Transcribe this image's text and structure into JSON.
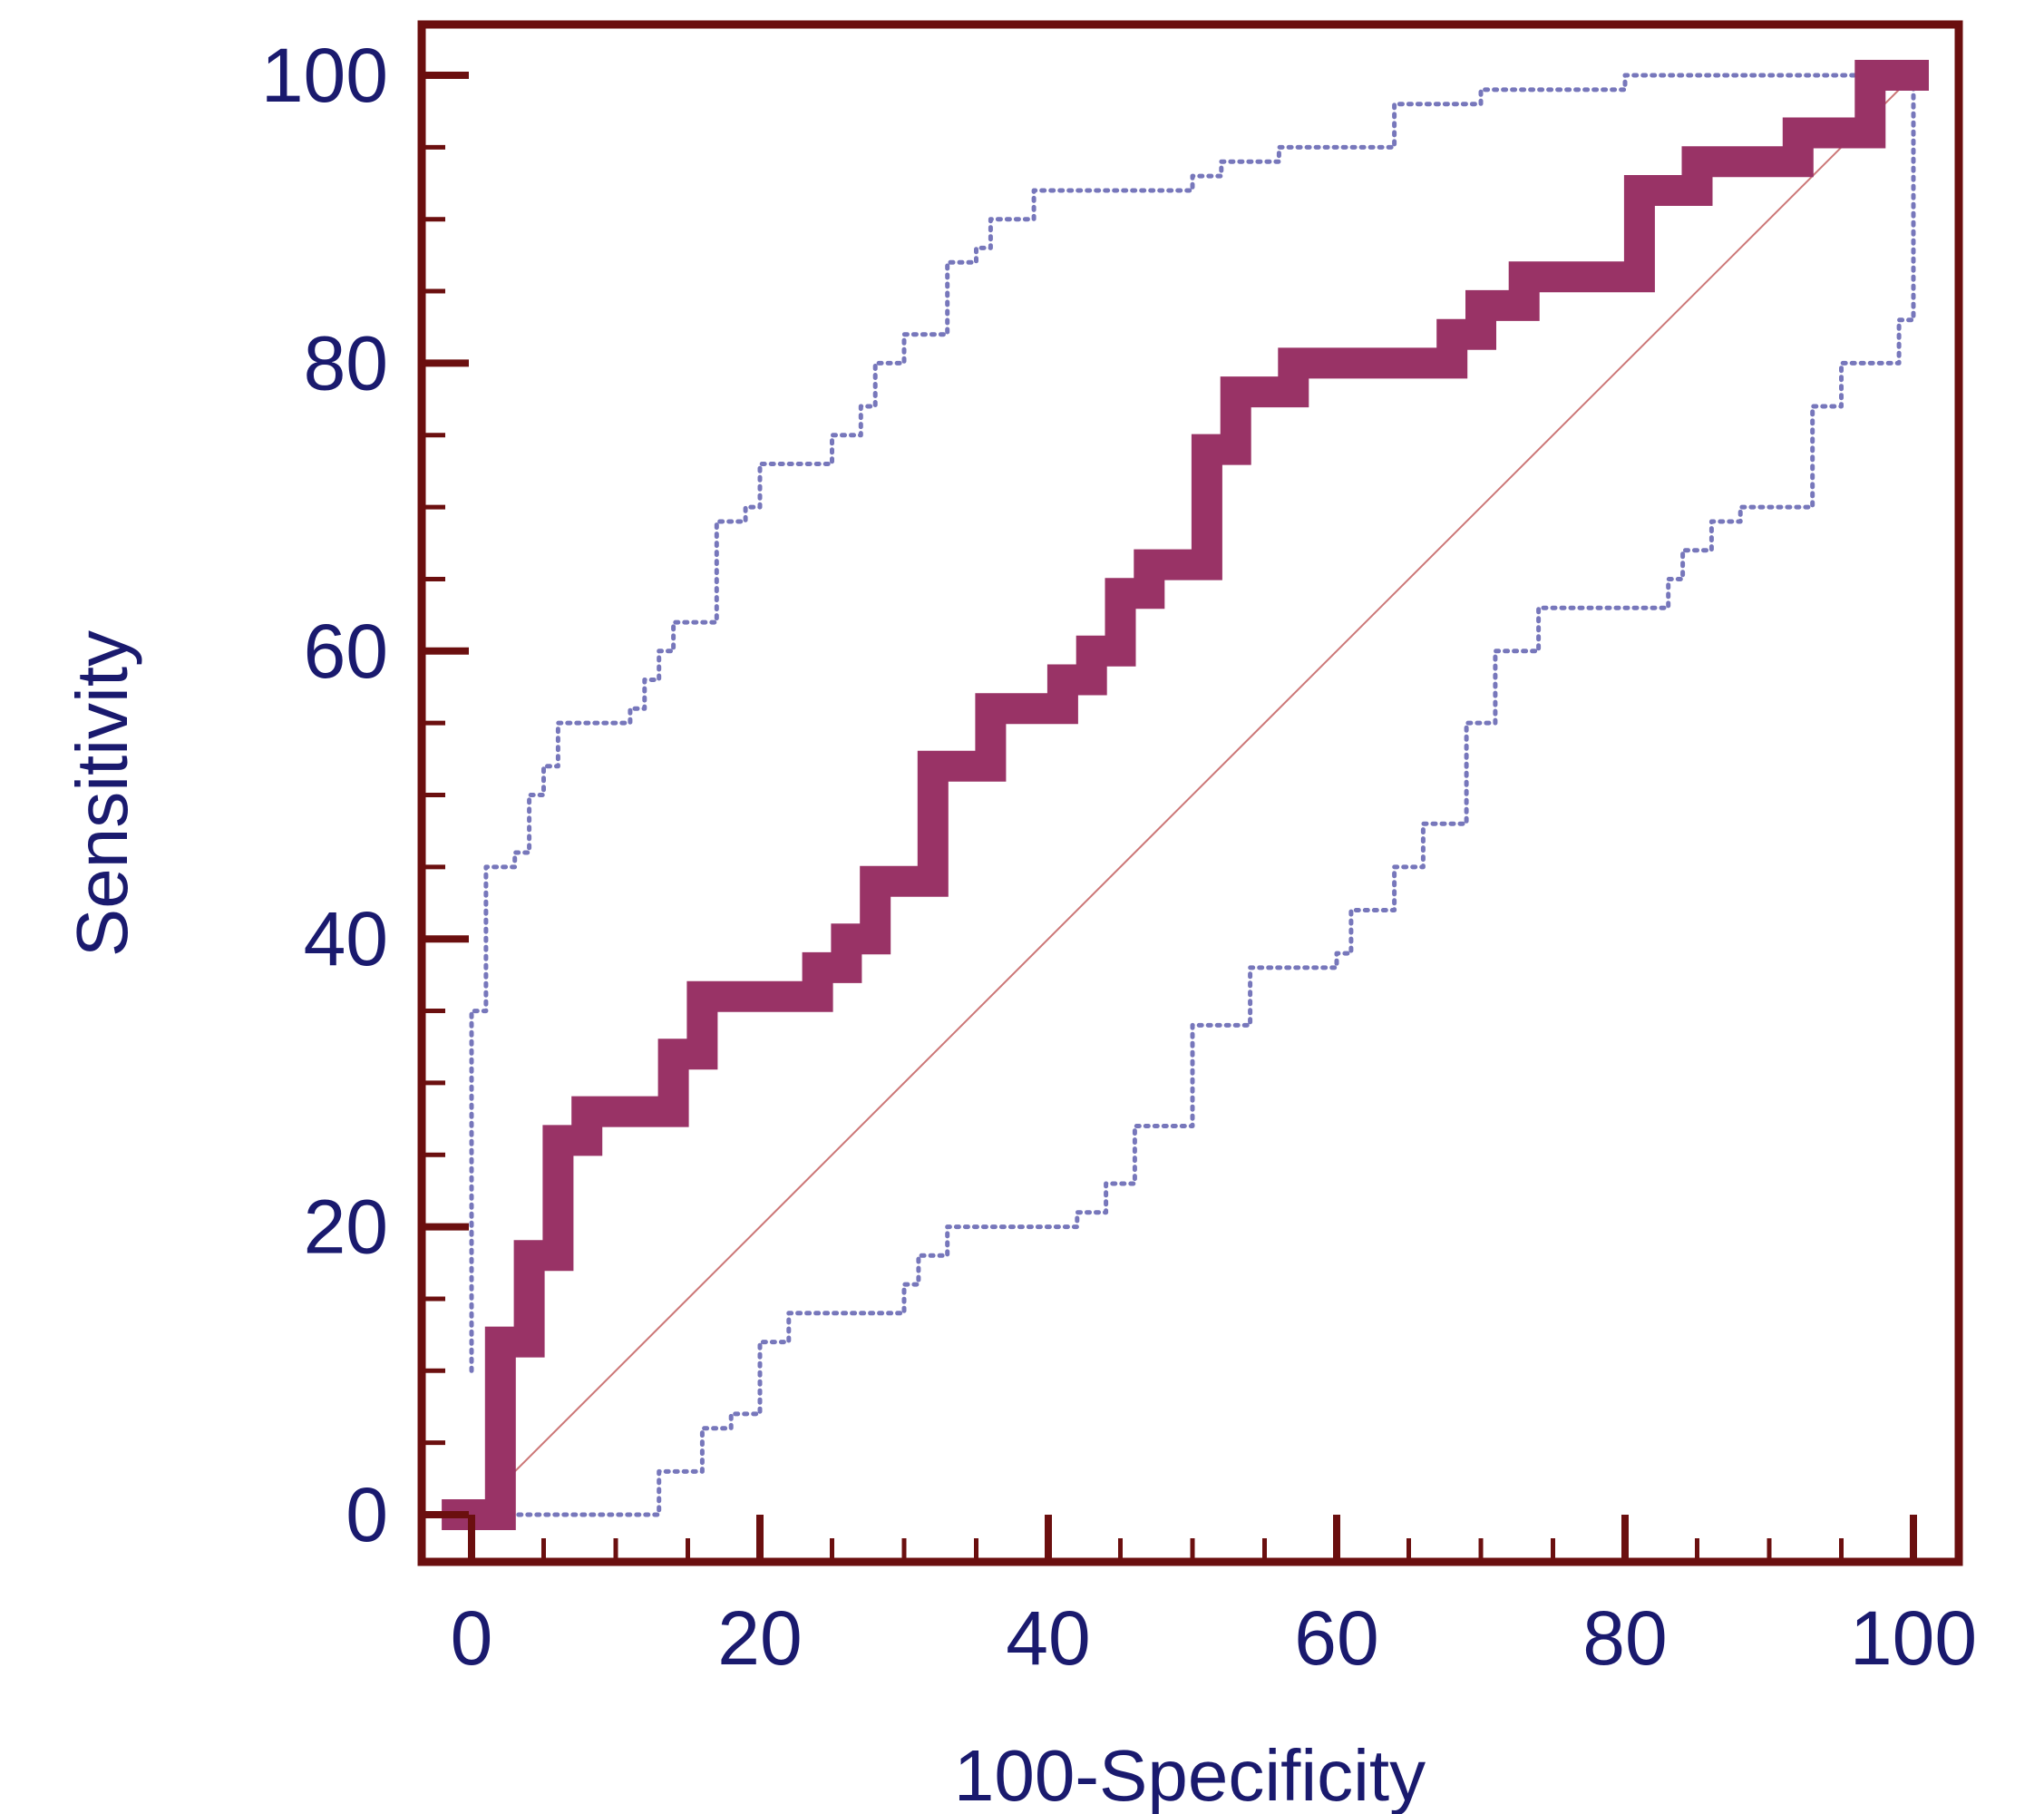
{
  "chart_data": {
    "type": "line",
    "title": "",
    "xlabel": "100-Specificity",
    "ylabel": "Sensitivity",
    "xlim": [
      0,
      100
    ],
    "ylim": [
      0,
      100
    ],
    "x_ticks": [
      "0",
      "20",
      "40",
      "60",
      "80",
      "100"
    ],
    "y_ticks": [
      "0",
      "20",
      "40",
      "60",
      "80",
      "100"
    ],
    "grid": false,
    "legend": "none",
    "colors": {
      "frame": "#6b0f0f",
      "roc_curve": "#993366",
      "confidence_bounds": "#7777bb",
      "reference_line": "#cc7777",
      "text": "#1a1a6e"
    },
    "series": [
      {
        "style": "thick-stepped",
        "points": [
          [
            -1,
            0
          ],
          [
            2,
            0
          ],
          [
            2,
            12
          ],
          [
            4,
            12
          ],
          [
            4,
            18
          ],
          [
            6,
            18
          ],
          [
            6,
            26
          ],
          [
            8,
            26
          ],
          [
            8,
            28
          ],
          [
            14,
            28
          ],
          [
            14,
            32
          ],
          [
            16,
            32
          ],
          [
            16,
            36
          ],
          [
            24,
            36
          ],
          [
            24,
            38
          ],
          [
            26,
            38
          ],
          [
            26,
            40
          ],
          [
            28,
            40
          ],
          [
            28,
            44
          ],
          [
            32,
            44
          ],
          [
            32,
            52
          ],
          [
            36,
            52
          ],
          [
            36,
            56
          ],
          [
            41,
            56
          ],
          [
            41,
            58
          ],
          [
            43,
            58
          ],
          [
            43,
            60
          ],
          [
            45,
            60
          ],
          [
            45,
            64
          ],
          [
            47,
            64
          ],
          [
            47,
            66
          ],
          [
            51,
            66
          ],
          [
            51,
            74
          ],
          [
            53,
            74
          ],
          [
            53,
            78
          ],
          [
            57,
            78
          ],
          [
            57,
            80
          ],
          [
            68,
            80
          ],
          [
            68,
            82
          ],
          [
            70,
            82
          ],
          [
            70,
            84
          ],
          [
            73,
            84
          ],
          [
            73,
            86
          ],
          [
            81,
            86
          ],
          [
            81,
            92
          ],
          [
            85,
            92
          ],
          [
            85,
            94
          ],
          [
            92,
            94
          ],
          [
            92,
            96
          ],
          [
            97,
            96
          ],
          [
            97,
            100
          ],
          [
            100,
            100
          ]
        ]
      },
      {
        "style": "dotted",
        "points": [
          [
            0,
            10
          ],
          [
            0,
            35
          ],
          [
            1,
            35
          ],
          [
            1,
            45
          ],
          [
            3,
            45
          ],
          [
            3,
            46
          ],
          [
            4,
            46
          ],
          [
            4,
            50
          ],
          [
            5,
            50
          ],
          [
            5,
            52
          ],
          [
            6,
            52
          ],
          [
            6,
            55
          ],
          [
            11,
            55
          ],
          [
            11,
            56
          ],
          [
            12,
            56
          ],
          [
            12,
            58
          ],
          [
            13,
            58
          ],
          [
            13,
            60
          ],
          [
            14,
            60
          ],
          [
            14,
            62
          ],
          [
            17,
            62
          ],
          [
            17,
            69
          ],
          [
            19,
            69
          ],
          [
            19,
            70
          ],
          [
            20,
            70
          ],
          [
            20,
            73
          ],
          [
            25,
            73
          ],
          [
            25,
            75
          ],
          [
            27,
            75
          ],
          [
            27,
            77
          ],
          [
            28,
            77
          ],
          [
            28,
            80
          ],
          [
            30,
            80
          ],
          [
            30,
            82
          ],
          [
            33,
            82
          ],
          [
            33,
            87
          ],
          [
            35,
            87
          ],
          [
            35,
            88
          ],
          [
            36,
            88
          ],
          [
            36,
            90
          ],
          [
            39,
            90
          ],
          [
            39,
            92
          ],
          [
            50,
            92
          ],
          [
            50,
            93
          ],
          [
            52,
            93
          ],
          [
            52,
            94
          ],
          [
            56,
            94
          ],
          [
            56,
            95
          ],
          [
            64,
            95
          ],
          [
            64,
            98
          ],
          [
            70,
            98
          ],
          [
            70,
            99
          ],
          [
            80,
            99
          ],
          [
            80,
            100
          ],
          [
            100,
            100
          ]
        ]
      },
      {
        "style": "dotted",
        "points": [
          [
            2,
            0
          ],
          [
            13,
            0
          ],
          [
            13,
            3
          ],
          [
            16,
            3
          ],
          [
            16,
            6
          ],
          [
            18,
            6
          ],
          [
            18,
            7
          ],
          [
            20,
            7
          ],
          [
            20,
            12
          ],
          [
            22,
            12
          ],
          [
            22,
            14
          ],
          [
            30,
            14
          ],
          [
            30,
            16
          ],
          [
            31,
            16
          ],
          [
            31,
            18
          ],
          [
            33,
            18
          ],
          [
            33,
            20
          ],
          [
            42,
            20
          ],
          [
            42,
            21
          ],
          [
            44,
            21
          ],
          [
            44,
            23
          ],
          [
            46,
            23
          ],
          [
            46,
            27
          ],
          [
            50,
            27
          ],
          [
            50,
            34
          ],
          [
            54,
            34
          ],
          [
            54,
            38
          ],
          [
            60,
            38
          ],
          [
            60,
            39
          ],
          [
            61,
            39
          ],
          [
            61,
            42
          ],
          [
            64,
            42
          ],
          [
            64,
            45
          ],
          [
            66,
            45
          ],
          [
            66,
            48
          ],
          [
            69,
            48
          ],
          [
            69,
            55
          ],
          [
            71,
            55
          ],
          [
            71,
            60
          ],
          [
            74,
            60
          ],
          [
            74,
            63
          ],
          [
            83,
            63
          ],
          [
            83,
            65
          ],
          [
            84,
            65
          ],
          [
            84,
            67
          ],
          [
            86,
            67
          ],
          [
            86,
            69
          ],
          [
            88,
            69
          ],
          [
            88,
            70
          ],
          [
            93,
            70
          ],
          [
            93,
            77
          ],
          [
            95,
            77
          ],
          [
            95,
            80
          ],
          [
            99,
            80
          ],
          [
            99,
            83
          ],
          [
            100,
            83
          ],
          [
            100,
            100
          ]
        ]
      },
      {
        "style": "thin-diagonal",
        "points": [
          [
            0,
            0
          ],
          [
            100,
            100
          ]
        ]
      }
    ]
  }
}
